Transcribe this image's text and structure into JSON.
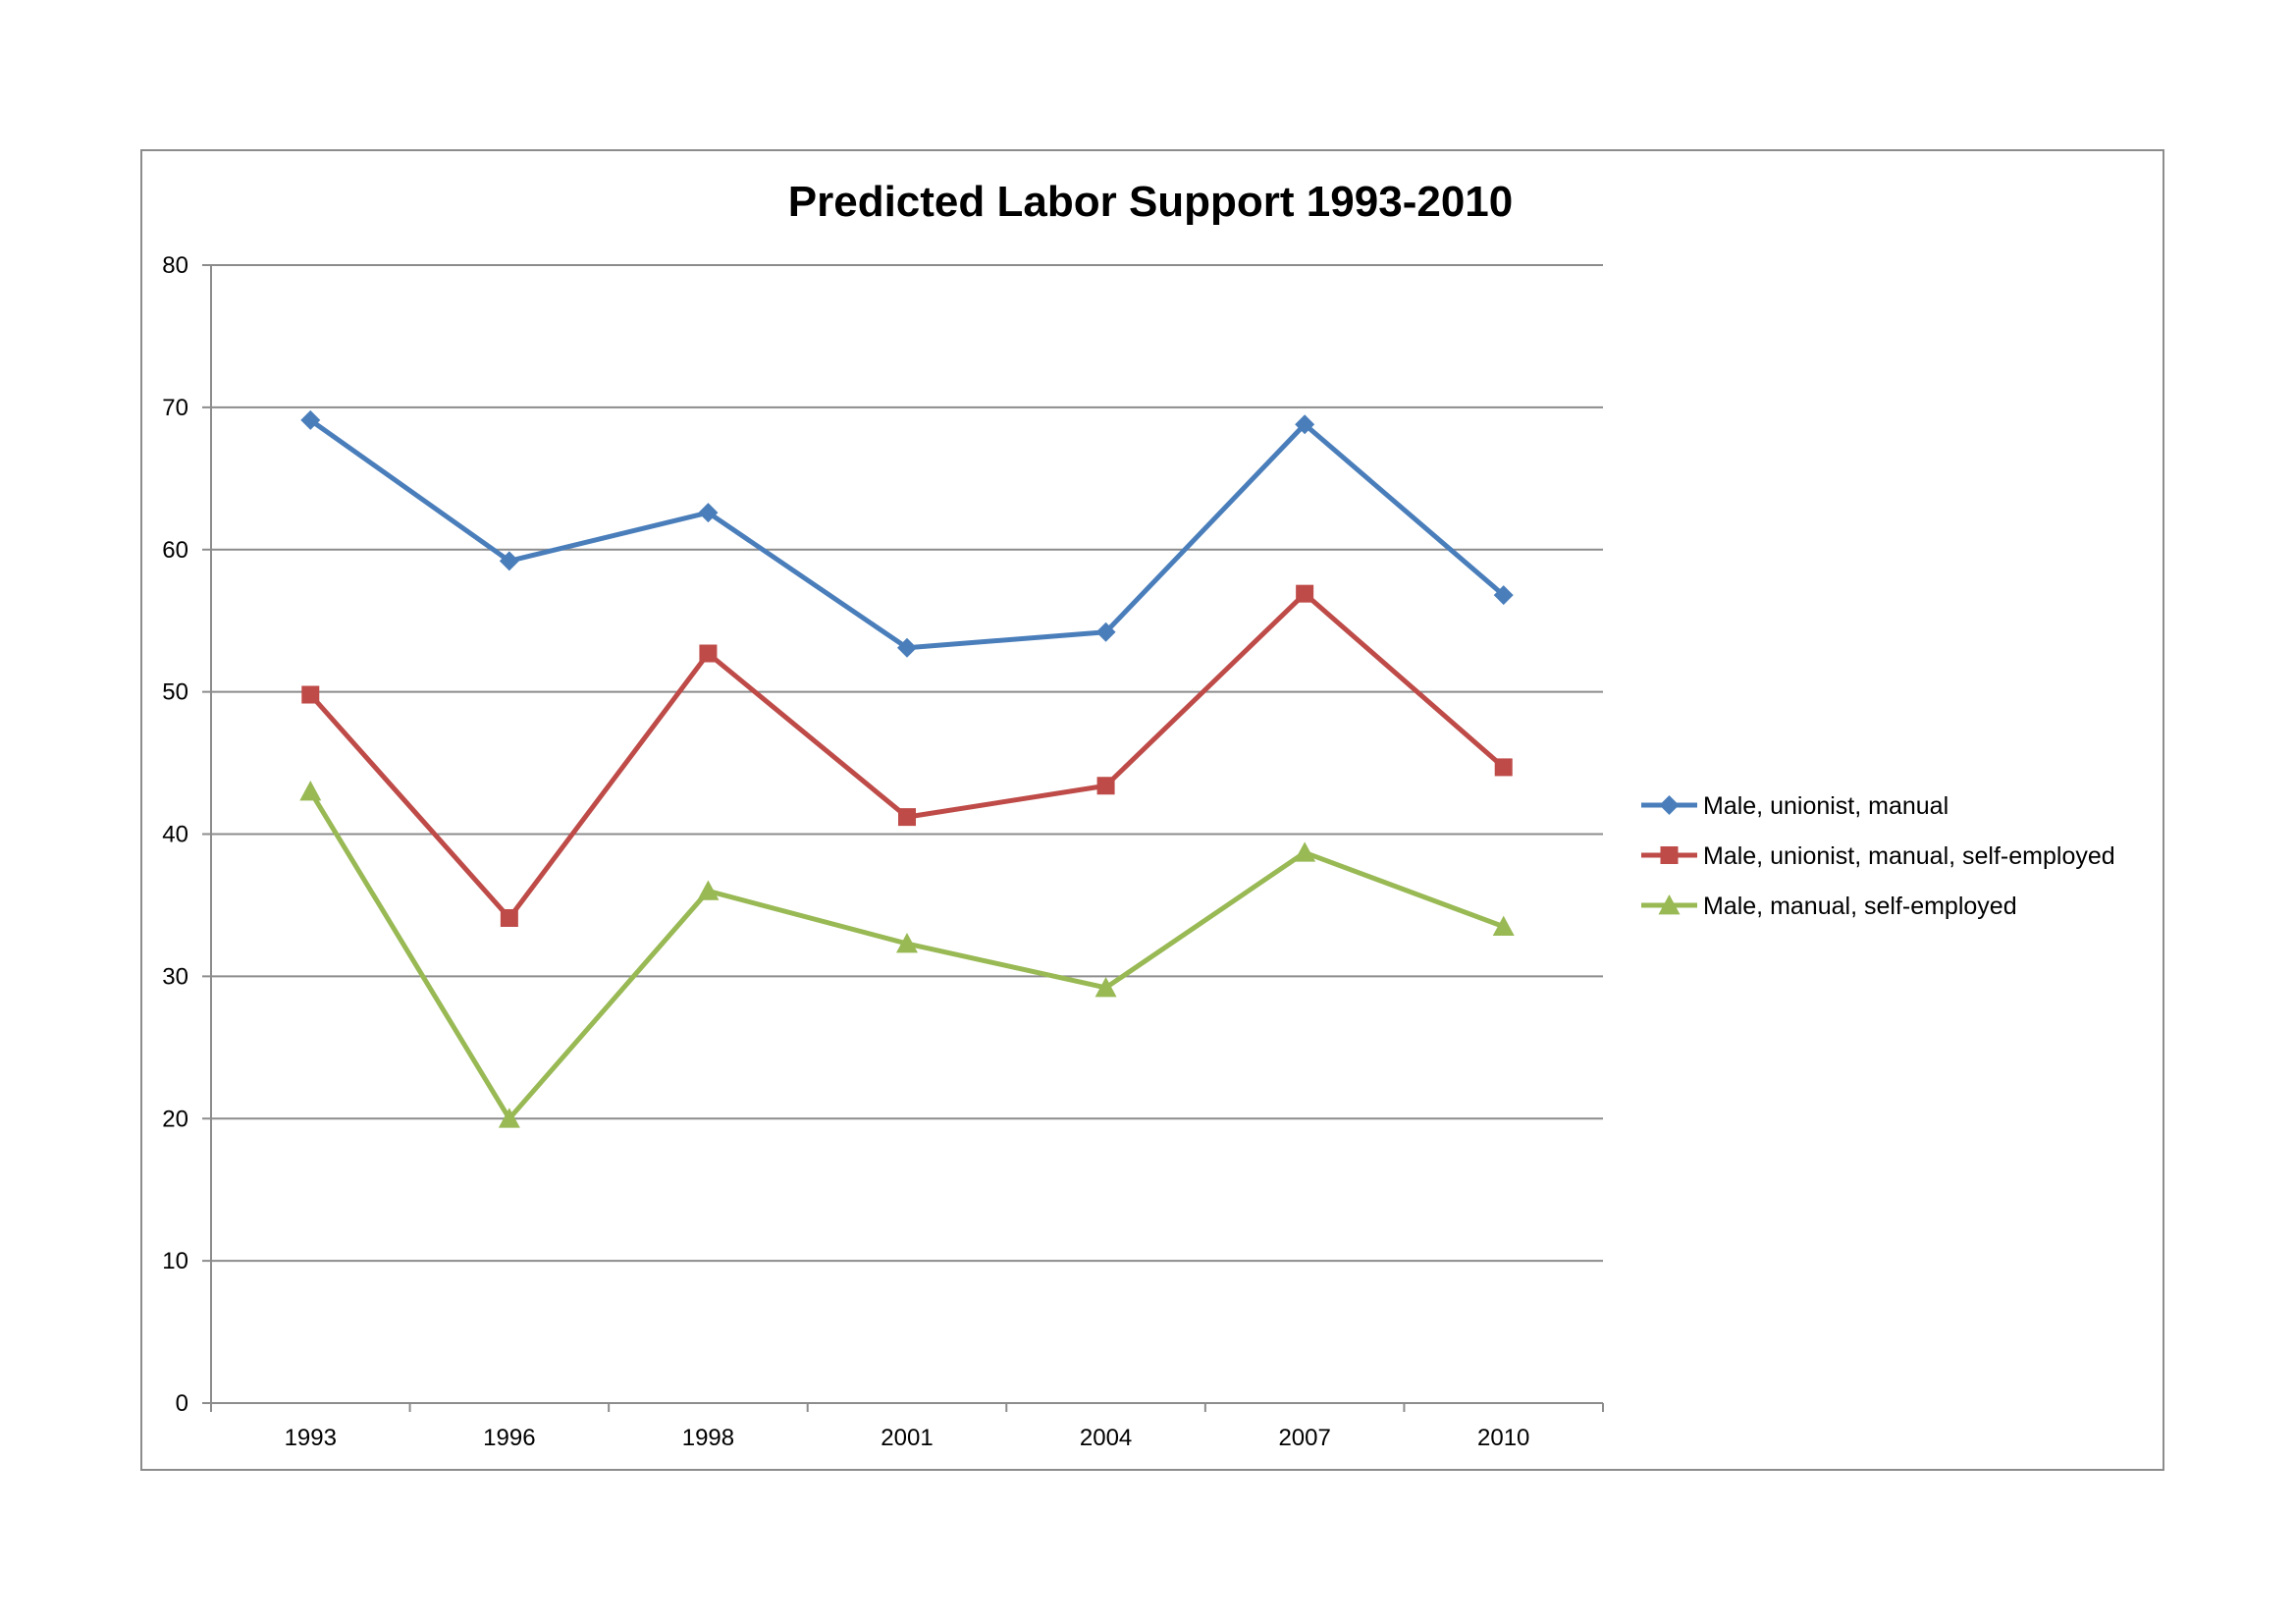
{
  "chart_data": {
    "type": "line",
    "title": "Predicted Labor Support 1993-2010",
    "xlabel": "",
    "ylabel": "",
    "categories": [
      "1993",
      "1996",
      "1998",
      "2001",
      "2004",
      "2007",
      "2010"
    ],
    "ylim": [
      0,
      80
    ],
    "yticks": [
      0,
      10,
      20,
      30,
      40,
      50,
      60,
      70,
      80
    ],
    "grid": true,
    "legend_position": "right",
    "series": [
      {
        "name": "Male, unionist, manual",
        "values": [
          69.1,
          59.2,
          62.6,
          53.1,
          54.2,
          68.8,
          56.8
        ],
        "color": "#4a7ebb",
        "marker": "diamond"
      },
      {
        "name": "Male, unionist, manual, self-employed",
        "values": [
          49.8,
          34.1,
          52.7,
          41.2,
          43.4,
          56.9,
          44.7
        ],
        "color": "#be4b48",
        "marker": "square"
      },
      {
        "name": "Male, manual, self-employed",
        "values": [
          43.0,
          20.0,
          36.0,
          32.3,
          29.2,
          38.7,
          33.5
        ],
        "color": "#98b954",
        "marker": "triangle"
      }
    ]
  }
}
